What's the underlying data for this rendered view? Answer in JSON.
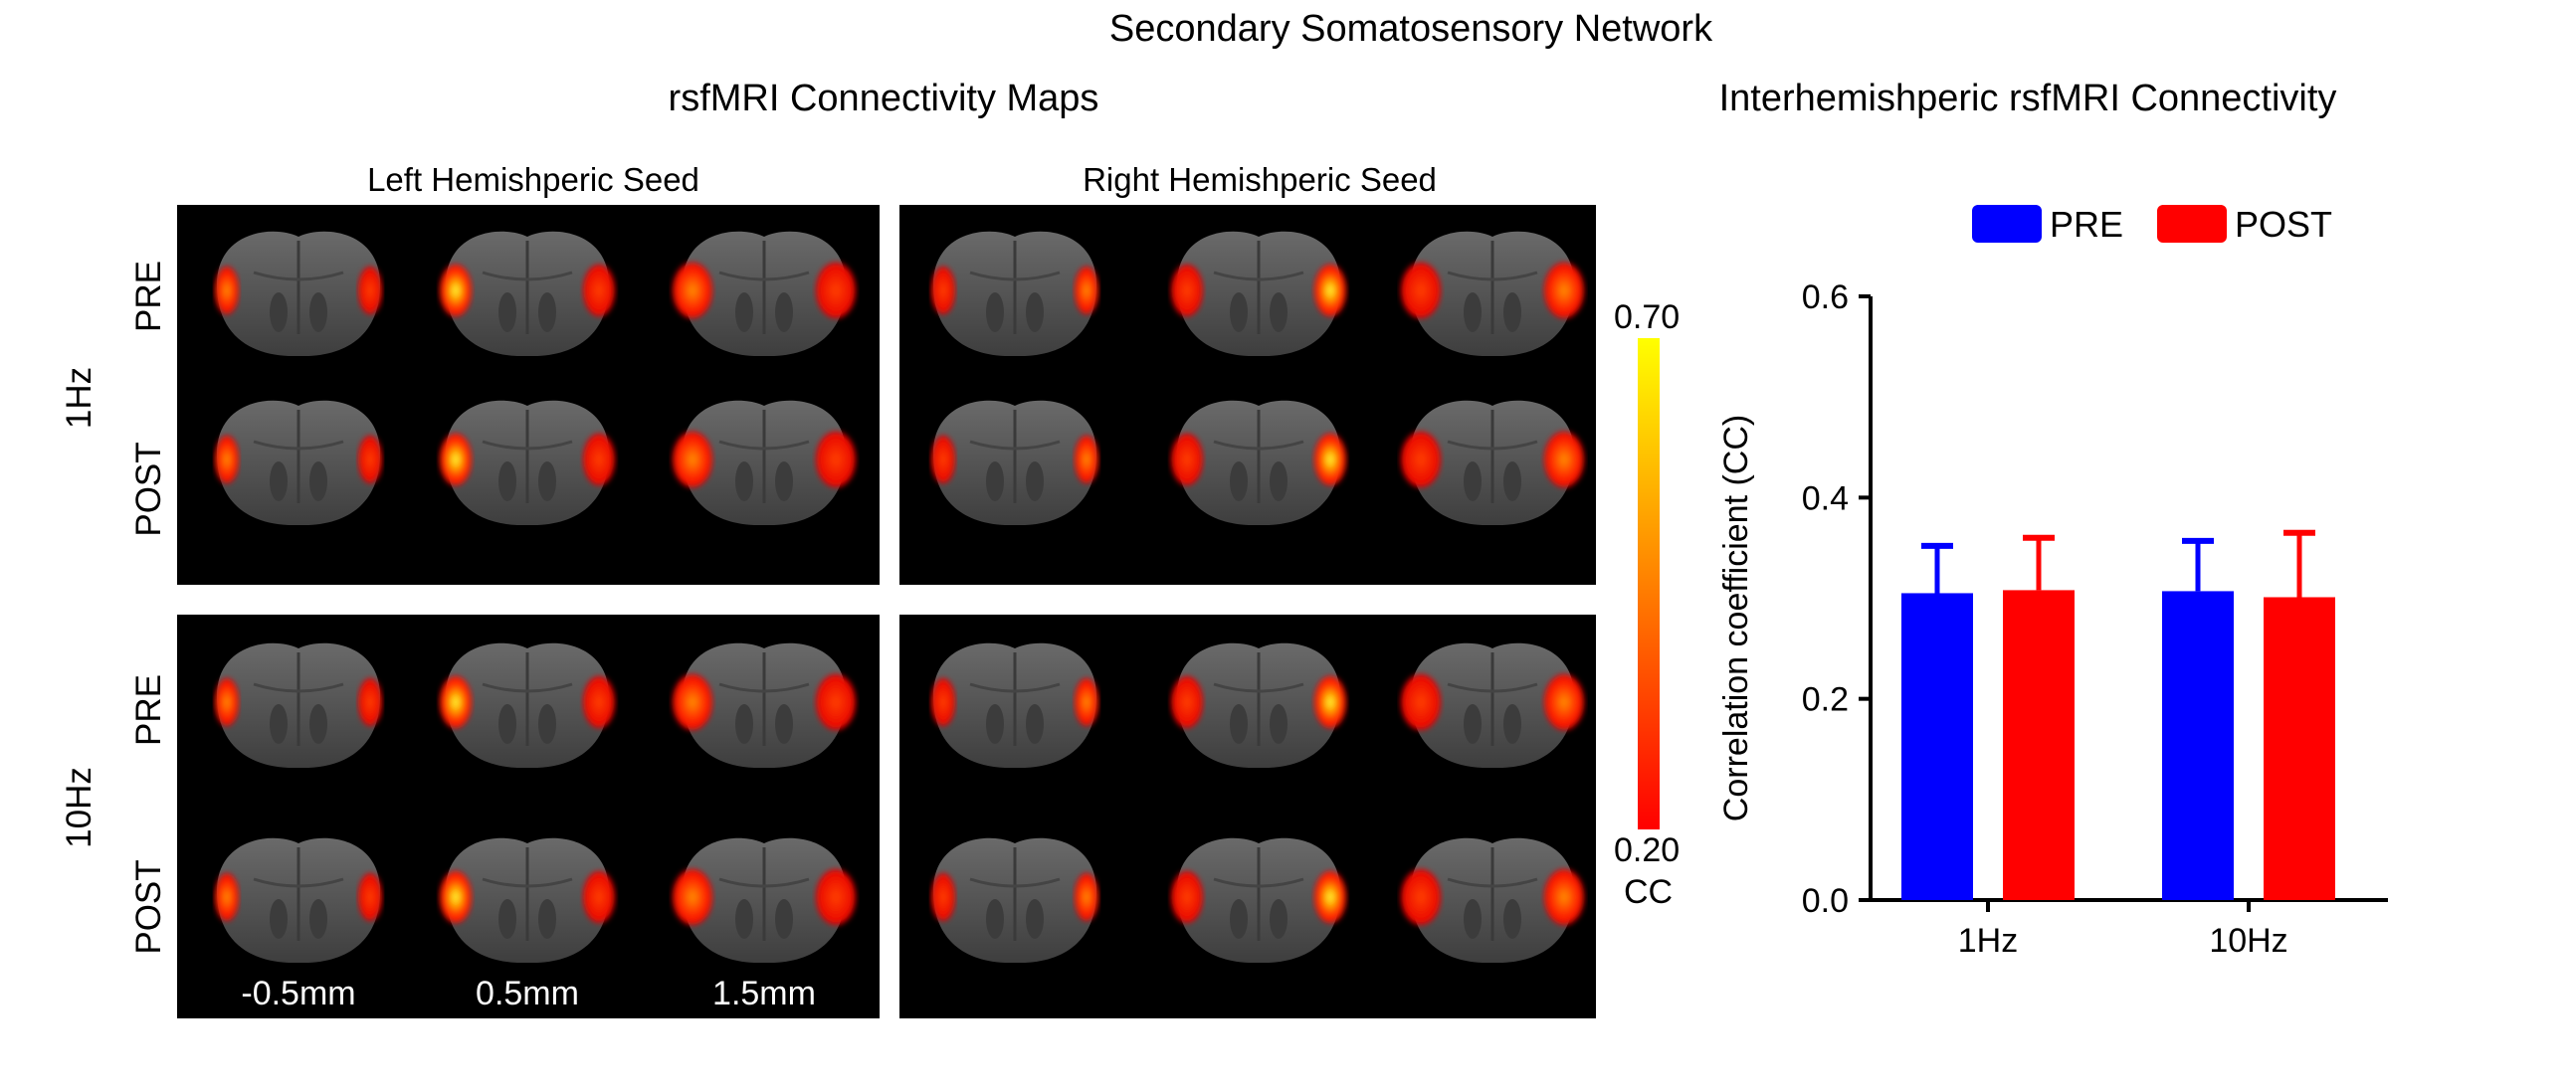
{
  "figure": {
    "title": "Secondary Somatosensory Network",
    "maps_heading": "rsfMRI Connectivity Maps",
    "chart_heading": "Interhemishperic rsfMRI Connectivity",
    "seed_labels": [
      "Left Hemishperic Seed",
      "Right Hemishperic Seed"
    ],
    "freq_labels": [
      "1Hz",
      "10Hz"
    ],
    "condition_labels": [
      "PRE",
      "POST",
      "PRE",
      "POST"
    ],
    "slice_labels": [
      "-0.5mm",
      "0.5mm",
      "1.5mm"
    ],
    "colorbar": {
      "max_label": "0.70",
      "min_label": "0.20",
      "unit": "CC",
      "colors": [
        "#ff0000",
        "#ff8000",
        "#ffff00"
      ]
    }
  },
  "chart_data": {
    "type": "bar",
    "categories": [
      "1Hz",
      "10Hz"
    ],
    "series": [
      {
        "name": "PRE",
        "color": "#0000ff",
        "values": [
          0.305,
          0.307
        ],
        "errors": [
          0.047,
          0.05
        ]
      },
      {
        "name": "POST",
        "color": "#ff0000",
        "values": [
          0.308,
          0.301
        ],
        "errors": [
          0.052,
          0.064
        ]
      }
    ],
    "ylabel": "Correlation coefficient (CC)",
    "ylim": [
      0,
      0.6
    ],
    "yticks": [
      "0.0",
      "0.2",
      "0.4",
      "0.6"
    ],
    "legend": "top",
    "grid": false
  }
}
